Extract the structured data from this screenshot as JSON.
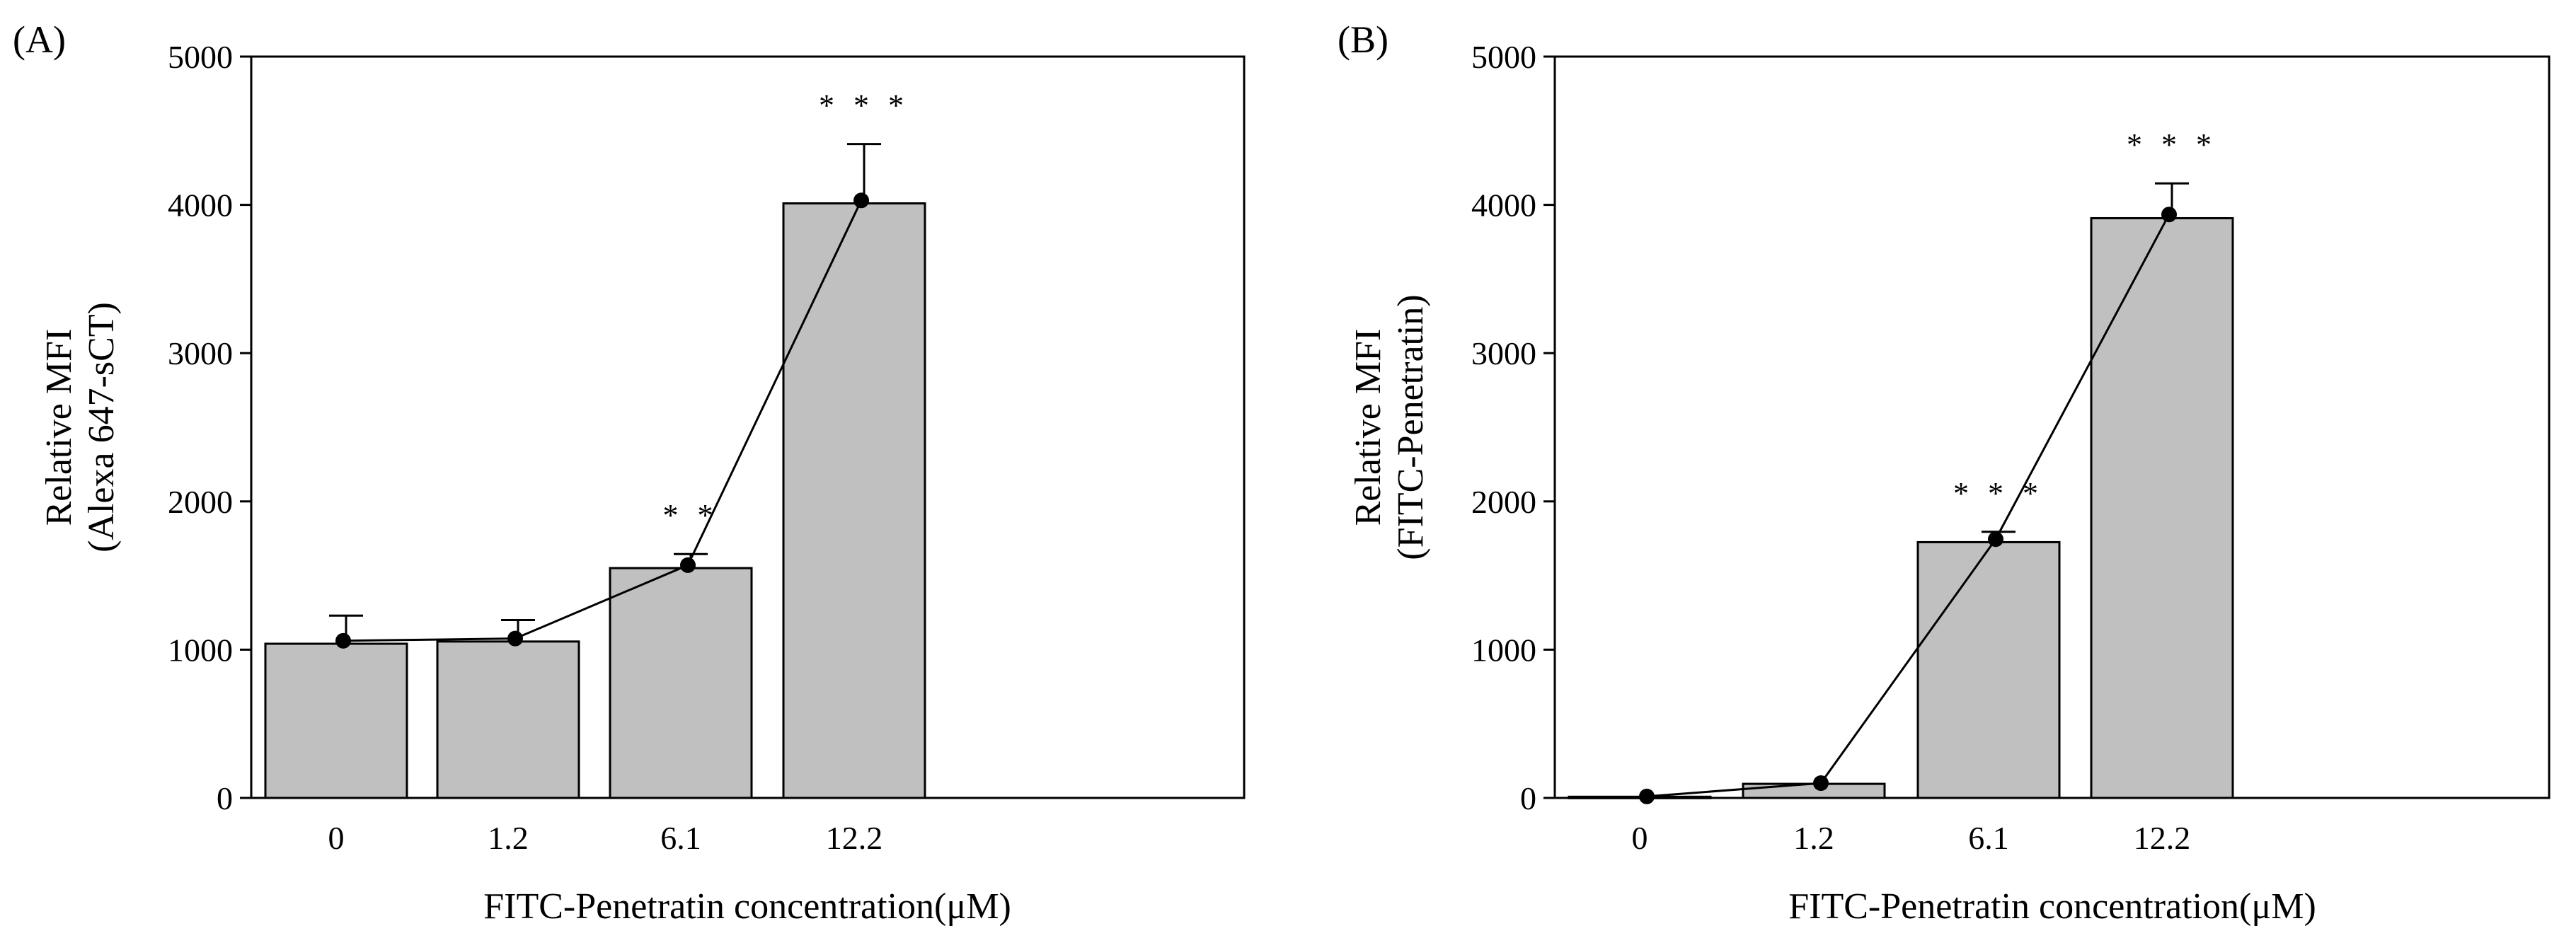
{
  "chart_data": [
    {
      "panel_label": "(A)",
      "type": "bar",
      "categories": [
        "0",
        "1.2",
        "6.1",
        "12.2"
      ],
      "values": [
        1040,
        1055,
        1550,
        4010
      ],
      "error_upper": [
        190,
        145,
        95,
        400
      ],
      "line_points": [
        1060,
        1075,
        1570,
        4030
      ],
      "significance": [
        "",
        "",
        "* *",
        "* * *"
      ],
      "xlabel": "FITC-Penetratin concentration(μM)",
      "ylabel_line1": "Relative MFI",
      "ylabel_line2": "(Alexa 647-sCT)",
      "ylim": [
        0,
        5000
      ],
      "yticks": [
        "0",
        "1000",
        "2000",
        "3000",
        "4000",
        "5000"
      ],
      "bar_color": "#c0c0c0",
      "grid": false
    },
    {
      "panel_label": "(B)",
      "type": "bar",
      "categories": [
        "0",
        "1.2",
        "6.1",
        "12.2"
      ],
      "values": [
        8,
        95,
        1725,
        3910
      ],
      "error_upper": [
        0,
        0,
        70,
        235
      ],
      "line_points": [
        10,
        100,
        1745,
        3935
      ],
      "significance": [
        "",
        "",
        "* * *",
        "* * *"
      ],
      "xlabel": "FITC-Penetratin concentration(μM)",
      "ylabel_line1": "Relative MFI",
      "ylabel_line2": "(FITC-Penetratin)",
      "ylim": [
        0,
        5000
      ],
      "yticks": [
        "0",
        "1000",
        "2000",
        "3000",
        "4000",
        "5000"
      ],
      "bar_color": "#c0c0c0",
      "grid": false
    }
  ]
}
